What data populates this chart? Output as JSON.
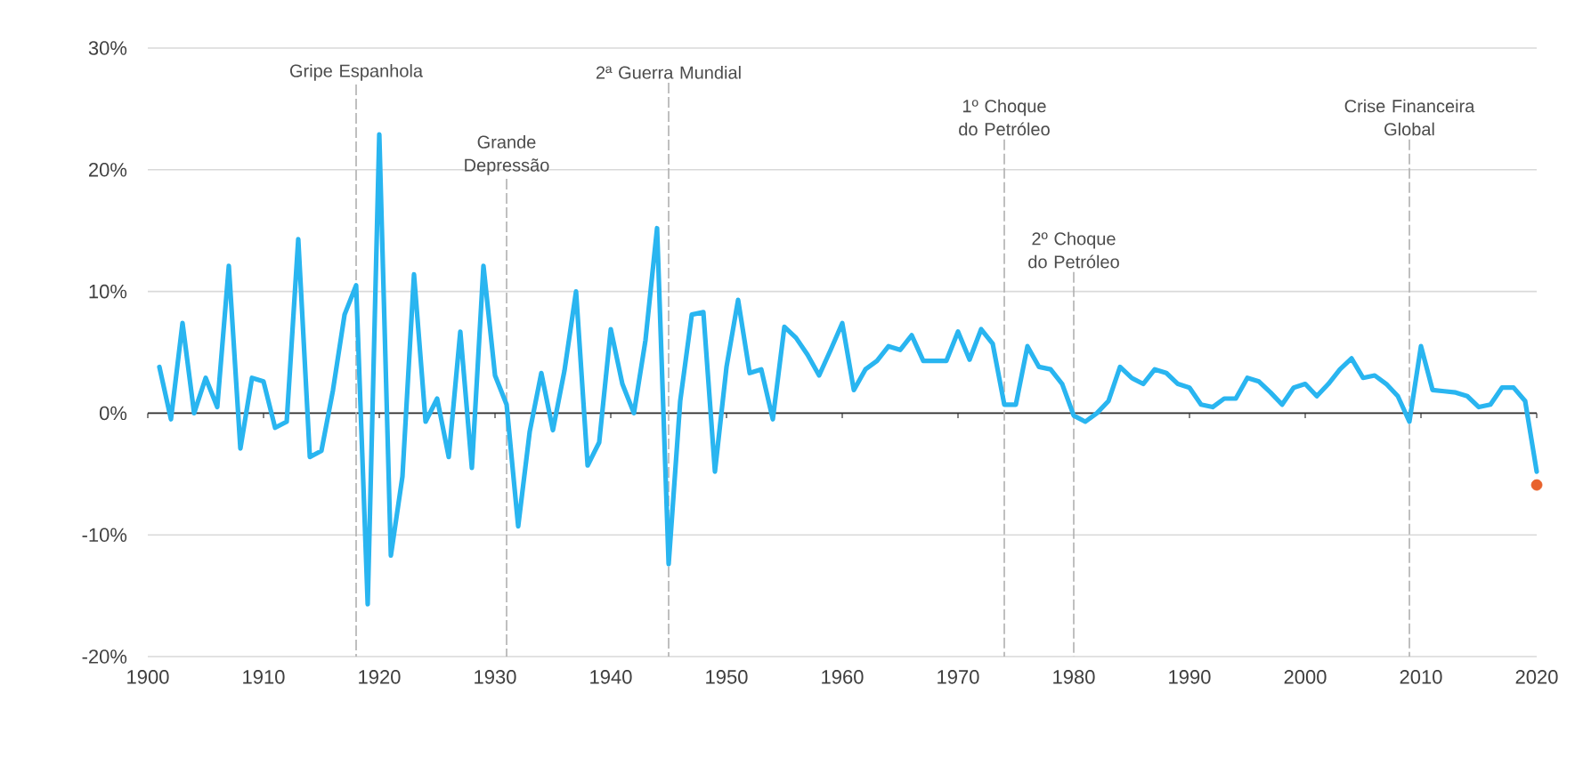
{
  "chart_data": {
    "type": "line",
    "x": [
      1901,
      1902,
      1903,
      1904,
      1905,
      1906,
      1907,
      1908,
      1909,
      1910,
      1911,
      1912,
      1913,
      1914,
      1915,
      1916,
      1917,
      1918,
      1919,
      1920,
      1921,
      1922,
      1923,
      1924,
      1925,
      1926,
      1927,
      1928,
      1929,
      1930,
      1931,
      1932,
      1933,
      1934,
      1935,
      1936,
      1937,
      1938,
      1939,
      1940,
      1941,
      1942,
      1943,
      1944,
      1945,
      1946,
      1947,
      1948,
      1949,
      1950,
      1951,
      1952,
      1953,
      1954,
      1955,
      1956,
      1957,
      1958,
      1959,
      1960,
      1961,
      1962,
      1963,
      1964,
      1965,
      1966,
      1967,
      1968,
      1969,
      1970,
      1971,
      1972,
      1973,
      1974,
      1975,
      1976,
      1977,
      1978,
      1979,
      1980,
      1981,
      1982,
      1983,
      1984,
      1985,
      1986,
      1987,
      1988,
      1989,
      1990,
      1991,
      1992,
      1993,
      1994,
      1995,
      1996,
      1997,
      1998,
      1999,
      2000,
      2001,
      2002,
      2003,
      2004,
      2005,
      2006,
      2007,
      2008,
      2009,
      2010,
      2011,
      2012,
      2013,
      2014,
      2015,
      2016,
      2017,
      2018,
      2019,
      2020
    ],
    "series": [
      {
        "color": "#29b5f0",
        "line_style": "solid",
        "marker": "none",
        "values": [
          3.8,
          -0.5,
          7.4,
          0,
          2.9,
          0.5,
          12.1,
          -2.9,
          2.9,
          2.6,
          -1.2,
          -0.7,
          14.3,
          -3.6,
          -3.1,
          1.9,
          8.1,
          10.5,
          -15.7,
          22.9,
          -11.7,
          -5.2,
          11.4,
          -0.7,
          1.2,
          -3.6,
          6.7,
          -4.5,
          12.1,
          3.1,
          0.7,
          -9.3,
          -1.5,
          3.3,
          -1.4,
          3.5,
          10,
          -4.3,
          -2.4,
          6.9,
          2.4,
          0,
          6,
          15.2,
          -12.4,
          1,
          8.1,
          8.3,
          -4.8,
          3.8,
          9.3,
          3.3,
          3.6,
          -0.5,
          7.1,
          6.2,
          4.8,
          3.1,
          5.2,
          7.4,
          1.9,
          3.6,
          4.3,
          5.5,
          5.2,
          6.4,
          4.3,
          4.3,
          4.3,
          6.7,
          4.4,
          6.9,
          5.7,
          0.7,
          0.7,
          5.5,
          3.8,
          3.6,
          2.4,
          -0.2,
          -0.7,
          0,
          1,
          3.8,
          2.9,
          2.4,
          3.6,
          3.3,
          2.4,
          2.1,
          0.7,
          0.5,
          1.2,
          1.2,
          2.9,
          2.6,
          1.7,
          0.7,
          2.1,
          2.4,
          1.4,
          2.4,
          3.6,
          4.5,
          2.9,
          3.1,
          2.4,
          1.4,
          -0.7,
          5.5,
          1.9,
          1.8,
          1.7,
          1.4,
          0.5,
          0.7,
          2.1,
          2.1,
          1,
          -4.8
        ]
      },
      {
        "type": "scatter",
        "color": "#e8622c",
        "marker": "circle",
        "x": [
          2020
        ],
        "values": [
          -5.9
        ]
      }
    ],
    "xlim": [
      1900,
      2020
    ],
    "xticks": [
      1900,
      1910,
      1920,
      1930,
      1940,
      1950,
      1960,
      1970,
      1980,
      1990,
      2000,
      2010,
      2020
    ],
    "ylim": [
      -20,
      30
    ],
    "yticks": [
      {
        "value": -20,
        "label": "-20%"
      },
      {
        "value": -10,
        "label": "-10%"
      },
      {
        "value": 0,
        "label": "0%"
      },
      {
        "value": 10,
        "label": "10%"
      },
      {
        "value": 20,
        "label": "20%"
      },
      {
        "value": 30,
        "label": "30%"
      }
    ],
    "grid": "y",
    "ref_lines": [
      {
        "axis": "x",
        "value": 1918,
        "label": "Gripe Espanhola",
        "color": "#b0b0b0"
      },
      {
        "axis": "x",
        "value": 1931,
        "label": "Grande Depressão",
        "color": "#b0b0b0"
      },
      {
        "axis": "x",
        "value": 1945,
        "label": "2ª Guerra Mundial",
        "color": "#b0b0b0"
      },
      {
        "axis": "x",
        "value": 1974,
        "label": "1º Choque do Petróleo",
        "color": "#b0b0b0"
      },
      {
        "axis": "x",
        "value": 1980,
        "label": "2º Choque do Petróleo",
        "color": "#b0b0b0"
      },
      {
        "axis": "x",
        "value": 2009,
        "label": "Crise Financeira Global",
        "color": "#b0b0b0"
      }
    ]
  }
}
